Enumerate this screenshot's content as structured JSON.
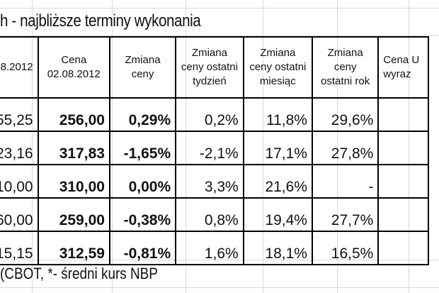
{
  "title": "h - najbliższe terminy wykonania",
  "headers": [
    "8.2012",
    "Cena 02.08.2012",
    "Zmiana ceny",
    "Zmiana ceny ostatni tydzień",
    "Zmiana ceny ostatni miesiąc",
    "Zmiana ceny ostatni rok",
    "Cena U wyraz"
  ],
  "rows": [
    [
      "55,25",
      "256,00",
      "0,29%",
      "0,2%",
      "11,8%",
      "29,6%",
      ""
    ],
    [
      "23,16",
      "317,83",
      "-1,65%",
      "-2,1%",
      "17,1%",
      "27,8%",
      ""
    ],
    [
      "10,00",
      "310,00",
      "0,00%",
      "3,3%",
      "21,6%",
      "-",
      ""
    ],
    [
      "60,00",
      "259,00",
      "-0,38%",
      "0,8%",
      "19,4%",
      "27,7%",
      ""
    ],
    [
      "15,15",
      "312,59",
      "-0,81%",
      "1,6%",
      "18,1%",
      "16,5%",
      ""
    ]
  ],
  "footnote": "(CBOT, *- średni kurs NBP"
}
